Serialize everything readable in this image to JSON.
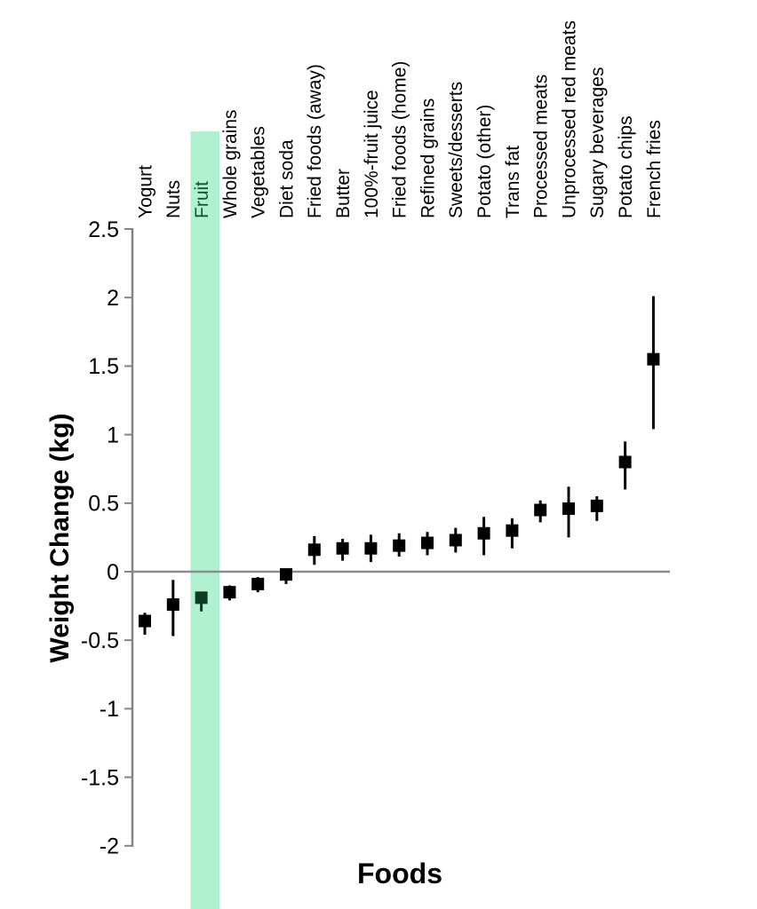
{
  "chart_data": {
    "type": "scatter",
    "title": "",
    "xlabel": "Foods",
    "ylabel": "Weight Change (kg)",
    "ylim": [
      -2,
      2.5
    ],
    "yticks": [
      2.5,
      2,
      1.5,
      1,
      0.5,
      0,
      -0.5,
      -1,
      -1.5,
      -2
    ],
    "grid": false,
    "legend_position": "none",
    "marker_shape": "square",
    "error_bars": true,
    "zero_line": true,
    "categories": [
      "Yogurt",
      "Nuts",
      "Fruit",
      "Whole grains",
      "Vegetables",
      "Diet soda",
      "Fried foods (away)",
      "Butter",
      "100%-fruit juice",
      "Fried foods (home)",
      "Refined grains",
      "Sweets/desserts",
      "Potato (other)",
      "Trans fat",
      "Processed meats",
      "Unprocessed red meats",
      "Sugary beverages",
      "Potato chips",
      "French fries"
    ],
    "series": [
      {
        "name": "Weight change (kg)",
        "values": [
          -0.36,
          -0.24,
          -0.19,
          -0.15,
          -0.09,
          -0.02,
          0.16,
          0.17,
          0.17,
          0.19,
          0.21,
          0.23,
          0.28,
          0.3,
          0.45,
          0.46,
          0.48,
          0.8,
          1.55
        ],
        "ci_low": [
          -0.46,
          -0.47,
          -0.29,
          -0.21,
          -0.15,
          -0.09,
          0.05,
          0.08,
          0.07,
          0.11,
          0.12,
          0.14,
          0.12,
          0.17,
          0.36,
          0.25,
          0.37,
          0.6,
          1.04
        ],
        "ci_high": [
          -0.3,
          -0.06,
          -0.15,
          -0.1,
          -0.04,
          0.02,
          0.26,
          0.24,
          0.27,
          0.28,
          0.29,
          0.32,
          0.4,
          0.39,
          0.52,
          0.62,
          0.55,
          0.95,
          2.01
        ]
      }
    ],
    "highlight": {
      "category": "Fruit",
      "band_color": "#b0f2d0",
      "marker_color": "#0e3b23",
      "label_color": "#14532d"
    }
  },
  "colors": {
    "marker": "#000000",
    "error_bar": "#000000",
    "axis": "#848484",
    "zero_line": "#8c8c8c",
    "text": "#000000",
    "background": "#ffffff"
  }
}
